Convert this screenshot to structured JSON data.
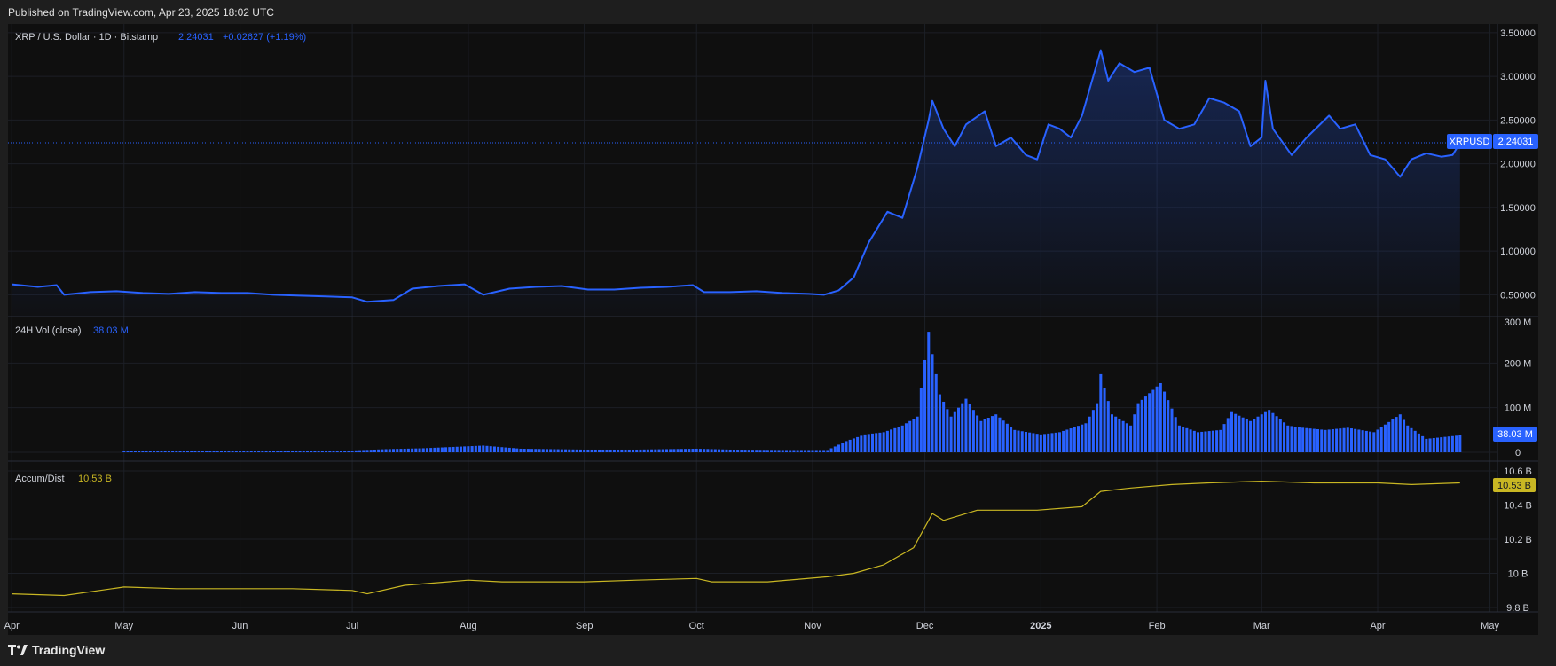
{
  "header": {
    "published": "Published on TradingView.com, Apr 23, 2025 18:02 UTC"
  },
  "legend": {
    "symbol": "XRP / U.S. Dollar · 1D · Bitstamp",
    "last": "2.24031",
    "change": "+0.02627 (+1.19%)",
    "vol_title": "24H Vol (close)",
    "vol_value": "38.03 M",
    "ad_title": "Accum/Dist",
    "ad_value": "10.53 B"
  },
  "badges": {
    "ticker": "XRPUSD",
    "price": "2.24031",
    "volume": "38.03 M",
    "ad": "10.53 B"
  },
  "colors": {
    "price_line": "#2962ff",
    "volume_bars": "#2962ff",
    "ad_line": "#c9b723",
    "background": "#0f0f0f"
  },
  "footer": {
    "brand": "TradingView"
  },
  "chart_data": [
    {
      "type": "line",
      "title": "XRP / U.S. Dollar · 1D · Bitstamp",
      "series": [
        {
          "name": "XRPUSD",
          "values": [
            [
              "2024-04-01",
              0.62
            ],
            [
              "2024-04-08",
              0.59
            ],
            [
              "2024-04-13",
              0.61
            ],
            [
              "2024-04-15",
              0.5
            ],
            [
              "2024-04-22",
              0.53
            ],
            [
              "2024-04-29",
              0.54
            ],
            [
              "2024-05-06",
              0.52
            ],
            [
              "2024-05-13",
              0.51
            ],
            [
              "2024-05-20",
              0.53
            ],
            [
              "2024-05-27",
              0.52
            ],
            [
              "2024-06-03",
              0.52
            ],
            [
              "2024-06-10",
              0.5
            ],
            [
              "2024-06-17",
              0.49
            ],
            [
              "2024-06-24",
              0.48
            ],
            [
              "2024-07-01",
              0.47
            ],
            [
              "2024-07-05",
              0.42
            ],
            [
              "2024-07-12",
              0.44
            ],
            [
              "2024-07-17",
              0.57
            ],
            [
              "2024-07-24",
              0.6
            ],
            [
              "2024-07-31",
              0.62
            ],
            [
              "2024-08-05",
              0.5
            ],
            [
              "2024-08-12",
              0.57
            ],
            [
              "2024-08-19",
              0.59
            ],
            [
              "2024-08-26",
              0.6
            ],
            [
              "2024-09-02",
              0.56
            ],
            [
              "2024-09-09",
              0.56
            ],
            [
              "2024-09-16",
              0.58
            ],
            [
              "2024-09-23",
              0.59
            ],
            [
              "2024-09-30",
              0.61
            ],
            [
              "2024-10-03",
              0.53
            ],
            [
              "2024-10-10",
              0.53
            ],
            [
              "2024-10-17",
              0.54
            ],
            [
              "2024-10-24",
              0.52
            ],
            [
              "2024-10-31",
              0.51
            ],
            [
              "2024-11-04",
              0.5
            ],
            [
              "2024-11-08",
              0.55
            ],
            [
              "2024-11-12",
              0.7
            ],
            [
              "2024-11-16",
              1.1
            ],
            [
              "2024-11-21",
              1.45
            ],
            [
              "2024-11-25",
              1.38
            ],
            [
              "2024-11-29",
              1.95
            ],
            [
              "2024-12-02",
              2.5
            ],
            [
              "2024-12-03",
              2.72
            ],
            [
              "2024-12-06",
              2.4
            ],
            [
              "2024-12-09",
              2.2
            ],
            [
              "2024-12-12",
              2.45
            ],
            [
              "2024-12-17",
              2.6
            ],
            [
              "2024-12-20",
              2.2
            ],
            [
              "2024-12-24",
              2.3
            ],
            [
              "2024-12-28",
              2.1
            ],
            [
              "2024-12-31",
              2.05
            ],
            [
              "2025-01-03",
              2.45
            ],
            [
              "2025-01-06",
              2.4
            ],
            [
              "2025-01-09",
              2.3
            ],
            [
              "2025-01-12",
              2.55
            ],
            [
              "2025-01-15",
              3.0
            ],
            [
              "2025-01-17",
              3.3
            ],
            [
              "2025-01-19",
              2.95
            ],
            [
              "2025-01-22",
              3.15
            ],
            [
              "2025-01-26",
              3.05
            ],
            [
              "2025-01-30",
              3.1
            ],
            [
              "2025-02-03",
              2.5
            ],
            [
              "2025-02-07",
              2.4
            ],
            [
              "2025-02-11",
              2.45
            ],
            [
              "2025-02-15",
              2.75
            ],
            [
              "2025-02-19",
              2.7
            ],
            [
              "2025-02-23",
              2.6
            ],
            [
              "2025-02-26",
              2.2
            ],
            [
              "2025-03-01",
              2.3
            ],
            [
              "2025-03-02",
              2.95
            ],
            [
              "2025-03-04",
              2.4
            ],
            [
              "2025-03-09",
              2.1
            ],
            [
              "2025-03-13",
              2.3
            ],
            [
              "2025-03-19",
              2.55
            ],
            [
              "2025-03-22",
              2.4
            ],
            [
              "2025-03-26",
              2.45
            ],
            [
              "2025-03-30",
              2.1
            ],
            [
              "2025-04-03",
              2.05
            ],
            [
              "2025-04-07",
              1.85
            ],
            [
              "2025-04-10",
              2.05
            ],
            [
              "2025-04-14",
              2.12
            ],
            [
              "2025-04-18",
              2.08
            ],
            [
              "2025-04-21",
              2.1
            ],
            [
              "2025-04-23",
              2.24
            ]
          ]
        }
      ],
      "ylim": [
        0.25,
        3.6
      ],
      "yticks": [
        "3.50000",
        "3.00000",
        "2.50000",
        "2.00000",
        "1.50000",
        "1.00000",
        "0.50000"
      ],
      "ytick_values": [
        3.5,
        3.0,
        2.5,
        2.0,
        1.5,
        1.0,
        0.5
      ],
      "last_value": 2.24031
    },
    {
      "type": "bar",
      "title": "24H Vol (close)",
      "unit": "M",
      "series": [
        {
          "name": "24H Vol (close)",
          "values": [
            [
              "2024-05-01",
              3
            ],
            [
              "2024-05-15",
              4
            ],
            [
              "2024-06-01",
              3
            ],
            [
              "2024-06-15",
              4
            ],
            [
              "2024-07-01",
              4
            ],
            [
              "2024-07-10",
              7
            ],
            [
              "2024-07-20",
              9
            ],
            [
              "2024-08-05",
              15
            ],
            [
              "2024-08-15",
              8
            ],
            [
              "2024-09-01",
              6
            ],
            [
              "2024-09-15",
              6
            ],
            [
              "2024-10-01",
              8
            ],
            [
              "2024-10-10",
              6
            ],
            [
              "2024-10-25",
              5
            ],
            [
              "2024-11-05",
              5
            ],
            [
              "2024-11-10",
              25
            ],
            [
              "2024-11-15",
              40
            ],
            [
              "2024-11-20",
              45
            ],
            [
              "2024-11-25",
              60
            ],
            [
              "2024-11-29",
              80
            ],
            [
              "2024-12-02",
              270
            ],
            [
              "2024-12-03",
              220
            ],
            [
              "2024-12-05",
              130
            ],
            [
              "2024-12-08",
              80
            ],
            [
              "2024-12-12",
              120
            ],
            [
              "2024-12-16",
              70
            ],
            [
              "2024-12-20",
              85
            ],
            [
              "2024-12-25",
              50
            ],
            [
              "2025-01-01",
              40
            ],
            [
              "2025-01-06",
              45
            ],
            [
              "2025-01-13",
              65
            ],
            [
              "2025-01-16",
              110
            ],
            [
              "2025-01-17",
              175
            ],
            [
              "2025-01-20",
              85
            ],
            [
              "2025-01-25",
              60
            ],
            [
              "2025-01-27",
              110
            ],
            [
              "2025-02-02",
              155
            ],
            [
              "2025-02-07",
              60
            ],
            [
              "2025-02-12",
              45
            ],
            [
              "2025-02-18",
              50
            ],
            [
              "2025-02-21",
              90
            ],
            [
              "2025-02-26",
              70
            ],
            [
              "2025-03-03",
              95
            ],
            [
              "2025-03-08",
              60
            ],
            [
              "2025-03-12",
              55
            ],
            [
              "2025-03-18",
              50
            ],
            [
              "2025-03-24",
              55
            ],
            [
              "2025-03-31",
              45
            ],
            [
              "2025-04-07",
              85
            ],
            [
              "2025-04-09",
              60
            ],
            [
              "2025-04-14",
              30
            ],
            [
              "2025-04-23",
              38.03
            ]
          ]
        }
      ],
      "ylim": [
        0,
        300
      ],
      "yticks": [
        "300 M",
        "200 M",
        "100 M",
        "0"
      ],
      "ytick_values": [
        300,
        200,
        100,
        0
      ],
      "last_value": 38.03
    },
    {
      "type": "line",
      "title": "Accum/Dist",
      "unit": "B",
      "series": [
        {
          "name": "Accum/Dist",
          "values": [
            [
              "2024-04-01",
              9.88
            ],
            [
              "2024-04-15",
              9.87
            ],
            [
              "2024-05-01",
              9.92
            ],
            [
              "2024-05-15",
              9.91
            ],
            [
              "2024-06-01",
              9.91
            ],
            [
              "2024-06-15",
              9.91
            ],
            [
              "2024-07-01",
              9.9
            ],
            [
              "2024-07-05",
              9.88
            ],
            [
              "2024-07-15",
              9.93
            ],
            [
              "2024-08-01",
              9.96
            ],
            [
              "2024-08-10",
              9.95
            ],
            [
              "2024-09-01",
              9.95
            ],
            [
              "2024-09-15",
              9.96
            ],
            [
              "2024-10-01",
              9.97
            ],
            [
              "2024-10-05",
              9.95
            ],
            [
              "2024-10-20",
              9.95
            ],
            [
              "2024-11-05",
              9.98
            ],
            [
              "2024-11-12",
              10.0
            ],
            [
              "2024-11-20",
              10.05
            ],
            [
              "2024-11-28",
              10.15
            ],
            [
              "2024-12-03",
              10.35
            ],
            [
              "2024-12-06",
              10.31
            ],
            [
              "2024-12-15",
              10.37
            ],
            [
              "2024-12-31",
              10.37
            ],
            [
              "2025-01-12",
              10.39
            ],
            [
              "2025-01-17",
              10.48
            ],
            [
              "2025-01-25",
              10.5
            ],
            [
              "2025-02-05",
              10.52
            ],
            [
              "2025-02-15",
              10.53
            ],
            [
              "2025-03-01",
              10.54
            ],
            [
              "2025-03-15",
              10.53
            ],
            [
              "2025-04-01",
              10.53
            ],
            [
              "2025-04-10",
              10.52
            ],
            [
              "2025-04-23",
              10.53
            ]
          ]
        }
      ],
      "ylim": [
        9.8,
        10.6
      ],
      "yticks": [
        "10.6 B",
        "10.4 B",
        "10.2 B",
        "10 B",
        "9.8 B"
      ],
      "ytick_values": [
        10.6,
        10.4,
        10.2,
        10.0,
        9.8
      ],
      "last_value": 10.53
    }
  ],
  "xaxis": {
    "range": [
      "2024-03-31",
      "2025-05-03"
    ],
    "ticks": [
      {
        "date": "2024-04-01",
        "label": "Apr"
      },
      {
        "date": "2024-05-01",
        "label": "May"
      },
      {
        "date": "2024-06-01",
        "label": "Jun"
      },
      {
        "date": "2024-07-01",
        "label": "Jul"
      },
      {
        "date": "2024-08-01",
        "label": "Aug"
      },
      {
        "date": "2024-09-01",
        "label": "Sep"
      },
      {
        "date": "2024-10-01",
        "label": "Oct"
      },
      {
        "date": "2024-11-01",
        "label": "Nov"
      },
      {
        "date": "2024-12-01",
        "label": "Dec"
      },
      {
        "date": "2025-01-01",
        "label": "2025"
      },
      {
        "date": "2025-02-01",
        "label": "Feb"
      },
      {
        "date": "2025-03-01",
        "label": "Mar"
      },
      {
        "date": "2025-04-01",
        "label": "Apr"
      },
      {
        "date": "2025-05-01",
        "label": "May"
      }
    ]
  }
}
